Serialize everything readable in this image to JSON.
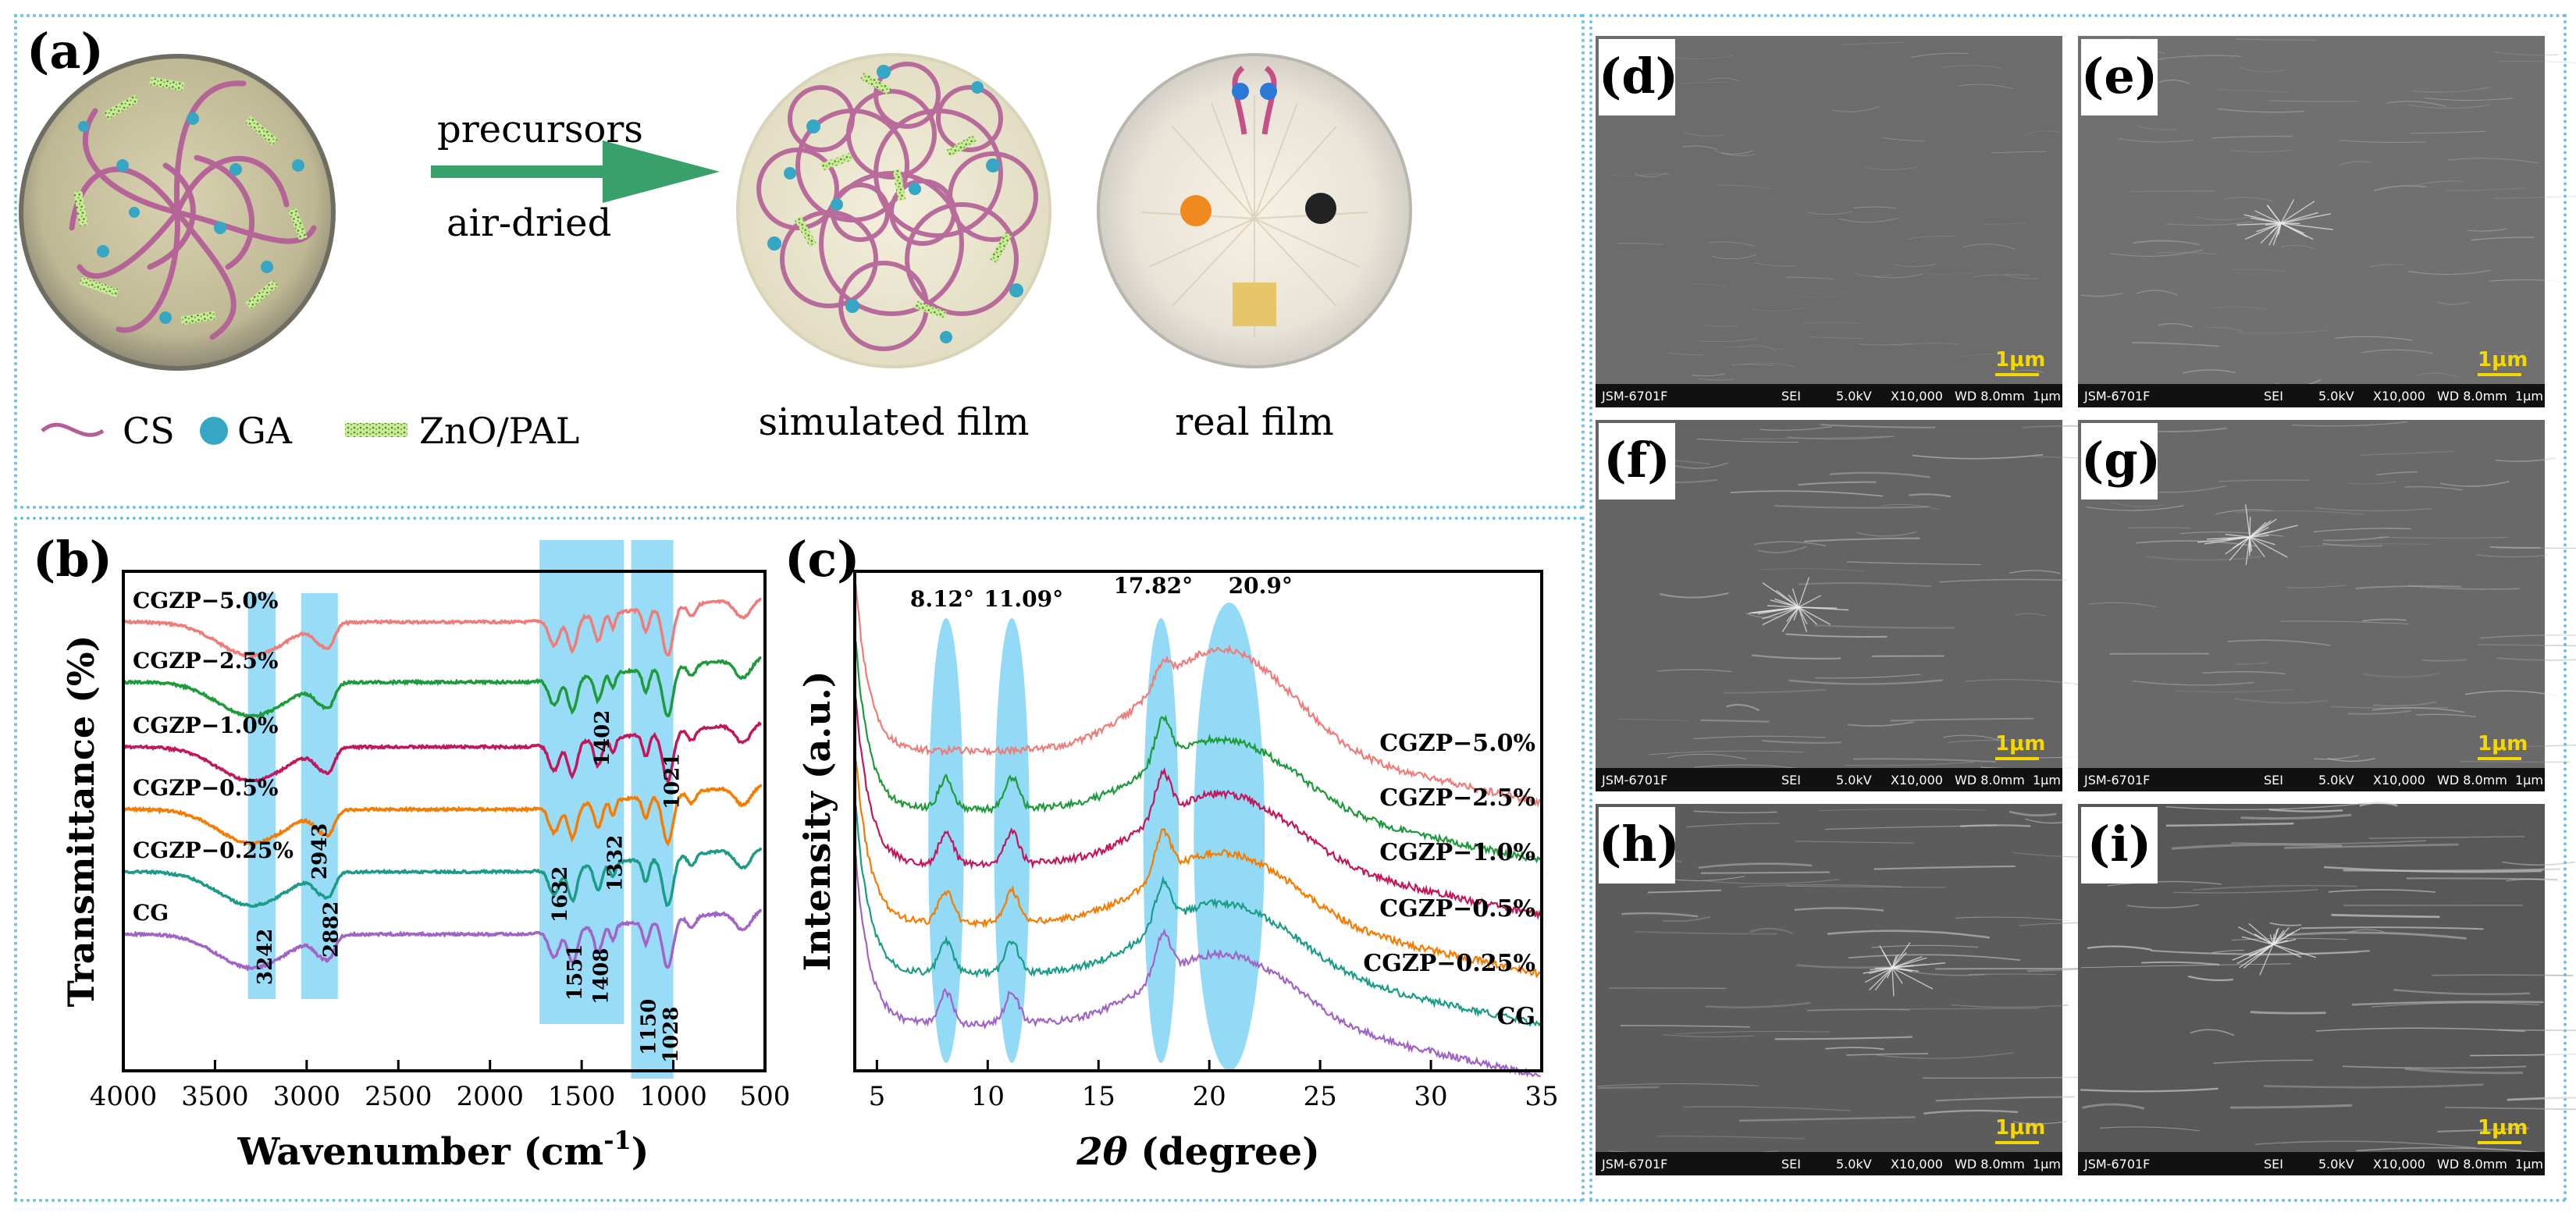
{
  "panel_a": {
    "label": "(a)",
    "arrow_top": "precursors",
    "arrow_bottom": "air-dried",
    "caption_sim": "simulated film",
    "caption_real": "real film",
    "legend": {
      "cs": "CS",
      "ga": "GA",
      "zp": "ZnO/PAL"
    },
    "colors": {
      "cs": "#b35f96",
      "ga": "#35a6c4",
      "zp": "#7cc23f",
      "arrow": "#3aa06b"
    }
  },
  "panel_b": {
    "label": "(b)"
  },
  "panel_c": {
    "label": "(c)"
  },
  "sem": {
    "labels": [
      "(d)",
      "(e)",
      "(f)",
      "(g)",
      "(h)",
      "(i)"
    ],
    "scale_label": "1μm",
    "bar_model": "JSM-6701F",
    "bar_sei": "SEI",
    "bar_kv": "5.0kV",
    "bar_mag": "X10,000",
    "bar_wd": "WD 8.0mm",
    "bar_scale": "1μm"
  },
  "chart_data": [
    {
      "type": "line",
      "panel": "(b)",
      "xlabel": "Wavenumber (cm",
      "xlabel_sup": "-1",
      "xlabel_close": ")",
      "ylabel": "Transmittance (%)",
      "xlim": [
        4000,
        500
      ],
      "x_ticks": [
        4000,
        3500,
        3000,
        2500,
        2000,
        1500,
        1000,
        500
      ],
      "series": [
        {
          "name": "CGZP−5.0%",
          "color": "#f07b78"
        },
        {
          "name": "CGZP−2.5%",
          "color": "#1f9a3b"
        },
        {
          "name": "CGZP−1.0%",
          "color": "#c2185b"
        },
        {
          "name": "CGZP−0.5%",
          "color": "#f57c00"
        },
        {
          "name": "CGZP−0.25%",
          "color": "#1b9c86"
        },
        {
          "name": "CG",
          "color": "#a063c8"
        }
      ],
      "bands": [
        [
          3320,
          3170
        ],
        [
          3030,
          2830
        ],
        [
          1730,
          1270
        ],
        [
          1230,
          1000
        ]
      ],
      "annotations": [
        "3242",
        "2943",
        "2882",
        "1632",
        "1551",
        "1408",
        "1332",
        "1402",
        "1021",
        "1150",
        "1028"
      ]
    },
    {
      "type": "line",
      "panel": "(c)",
      "xlabel_theta": "2θ",
      "xlabel": " (degree)",
      "ylabel": "Intensity (a.u.)",
      "xlim": [
        4,
        35
      ],
      "x_ticks": [
        5,
        10,
        15,
        20,
        25,
        30,
        35
      ],
      "peaks": [
        8.12,
        11.09,
        17.82,
        20.9
      ],
      "peak_labels": [
        "8.12°",
        "11.09°",
        "17.82°",
        "20.9°"
      ],
      "series": [
        {
          "name": "CGZP−5.0%",
          "color": "#f07b78"
        },
        {
          "name": "CGZP−2.5%",
          "color": "#1f9a3b"
        },
        {
          "name": "CGZP−1.0%",
          "color": "#c2185b"
        },
        {
          "name": "CGZP−0.5%",
          "color": "#f57c00"
        },
        {
          "name": "CGZP−0.25%",
          "color": "#1b9c86"
        },
        {
          "name": "CG",
          "color": "#a063c8"
        }
      ]
    }
  ]
}
